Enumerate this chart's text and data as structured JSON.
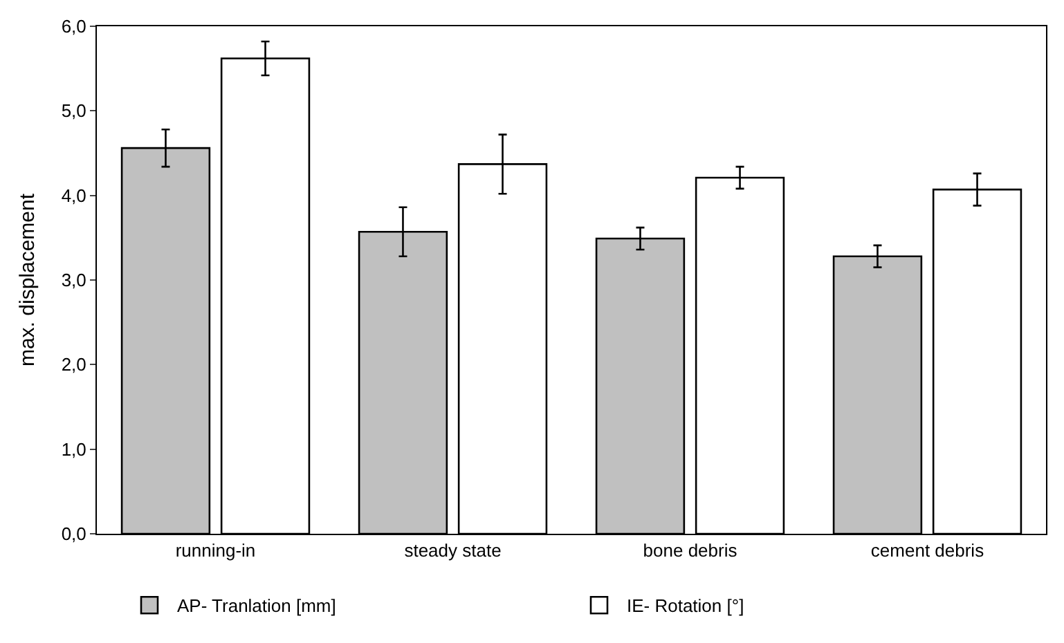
{
  "chart_data": {
    "type": "bar",
    "ylabel": "max. displacement",
    "categories": [
      "running-in",
      "steady state",
      "bone debris",
      "cement debris"
    ],
    "series": [
      {
        "name": "AP- Tranlation [mm]",
        "color": "#c0c0c0",
        "values": [
          4.56,
          3.57,
          3.49,
          3.28
        ],
        "errors": [
          0.22,
          0.29,
          0.13,
          0.13
        ]
      },
      {
        "name": "IE- Rotation [°]",
        "color": "#ffffff",
        "values": [
          5.62,
          4.37,
          4.21,
          4.07
        ],
        "errors": [
          0.2,
          0.35,
          0.13,
          0.19
        ]
      }
    ],
    "ylim": [
      0,
      6
    ],
    "yticks": [
      {
        "value": 0,
        "label": "0,0"
      },
      {
        "value": 1,
        "label": "1,0"
      },
      {
        "value": 2,
        "label": "2,0"
      },
      {
        "value": 3,
        "label": "3,0"
      },
      {
        "value": 4,
        "label": "4,0"
      },
      {
        "value": 5,
        "label": "5,0"
      },
      {
        "value": 6,
        "label": "6,0"
      }
    ],
    "legend": "bottom"
  }
}
